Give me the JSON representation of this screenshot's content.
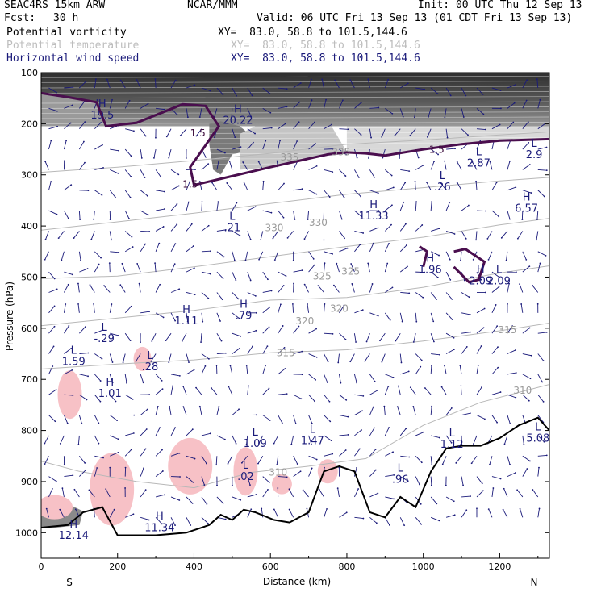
{
  "header": {
    "model": "SEAC4RS 15km ARW",
    "source": "NCAR/MMM",
    "init": "Init: 00 UTC Thu 12 Sep 13",
    "fcst_label": "Fcst:",
    "fcst_value": "30 h",
    "valid": "Valid: 06 UTC Fri 13 Sep 13 (01 CDT Fri 13 Sep 13)",
    "fields": [
      {
        "name": "Potential vorticity",
        "xy": "XY=  83.0, 58.8 to 101.5,144.6",
        "color": "#000000"
      },
      {
        "name": "Potential temperature",
        "xy": "XY=  83.0, 58.8 to 101.5,144.6",
        "color": "#bdbdbd"
      },
      {
        "name": "Horizontal wind speed",
        "xy": "XY=  83.0, 58.8 to 101.5,144.6",
        "color": "#1a1a7a"
      }
    ]
  },
  "chart_data": {
    "type": "cross-section",
    "xlabel": "Distance (km)",
    "ylabel": "Pressure (hPa)",
    "xlim": [
      0,
      1330
    ],
    "ylim": [
      1050,
      100
    ],
    "xticks": [
      0,
      200,
      400,
      600,
      800,
      1000,
      1200
    ],
    "yticks": [
      100,
      200,
      300,
      400,
      500,
      600,
      700,
      800,
      900,
      1000
    ],
    "x_end_labels": {
      "left": "S",
      "right": "N"
    },
    "isentropes": [
      {
        "label": "335",
        "pts": [
          [
            0,
            295
          ],
          [
            200,
            285
          ],
          [
            400,
            272
          ],
          [
            600,
            258
          ],
          [
            800,
            240
          ],
          [
            1000,
            232
          ],
          [
            1200,
            222
          ],
          [
            1330,
            216
          ]
        ],
        "labels_at": [
          [
            650,
            272
          ],
          [
            785,
            262
          ]
        ]
      },
      {
        "label": "330",
        "pts": [
          [
            0,
            408
          ],
          [
            200,
            392
          ],
          [
            400,
            375
          ],
          [
            600,
            356
          ],
          [
            800,
            338
          ],
          [
            1000,
            325
          ],
          [
            1200,
            312
          ],
          [
            1330,
            305
          ]
        ],
        "labels_at": [
          [
            610,
            410
          ],
          [
            725,
            400
          ]
        ]
      },
      {
        "label": "325",
        "pts": [
          [
            0,
            503
          ],
          [
            200,
            498
          ],
          [
            400,
            480
          ],
          [
            600,
            460
          ],
          [
            800,
            440
          ],
          [
            1000,
            422
          ],
          [
            1200,
            398
          ],
          [
            1330,
            385
          ]
        ],
        "labels_at": [
          [
            735,
            505
          ],
          [
            810,
            495
          ]
        ]
      },
      {
        "label": "320",
        "pts": [
          [
            0,
            595
          ],
          [
            200,
            580
          ],
          [
            400,
            565
          ],
          [
            600,
            545
          ],
          [
            800,
            540
          ],
          [
            1000,
            520
          ],
          [
            1200,
            492
          ],
          [
            1330,
            478
          ]
        ],
        "labels_at": [
          [
            690,
            592
          ],
          [
            780,
            568
          ]
        ]
      },
      {
        "label": "315",
        "pts": [
          [
            0,
            680
          ],
          [
            200,
            670
          ],
          [
            400,
            662
          ],
          [
            600,
            648
          ],
          [
            800,
            642
          ],
          [
            1000,
            625
          ],
          [
            1200,
            605
          ],
          [
            1330,
            590
          ]
        ],
        "labels_at": [
          [
            640,
            655
          ],
          [
            1220,
            610
          ]
        ]
      },
      {
        "label": "310",
        "pts": [
          [
            0,
            860
          ],
          [
            100,
            880
          ],
          [
            250,
            900
          ],
          [
            400,
            912
          ],
          [
            550,
            882
          ],
          [
            700,
            870
          ],
          [
            850,
            855
          ],
          [
            1000,
            790
          ],
          [
            1150,
            745
          ],
          [
            1330,
            710
          ]
        ],
        "labels_at": [
          [
            620,
            888
          ],
          [
            1260,
            728
          ]
        ]
      }
    ],
    "pv_1p5": [
      {
        "label": "1.5",
        "pts": [
          [
            0,
            140
          ],
          [
            70,
            148
          ],
          [
            145,
            158
          ],
          [
            170,
            205
          ],
          [
            250,
            198
          ],
          [
            370,
            162
          ],
          [
            430,
            165
          ],
          [
            465,
            205
          ],
          [
            390,
            285
          ],
          [
            400,
            320
          ],
          [
            480,
            306
          ],
          [
            600,
            285
          ],
          [
            750,
            260
          ],
          [
            800,
            256
          ],
          [
            850,
            258
          ],
          [
            900,
            262
          ],
          [
            1000,
            250
          ],
          [
            1100,
            240
          ],
          [
            1200,
            233
          ],
          [
            1330,
            230
          ]
        ],
        "labels_at": [
          [
            410,
            225
          ],
          [
            1035,
            257
          ],
          [
            390,
            325
          ]
        ]
      }
    ],
    "terrain": [
      [
        0,
        990
      ],
      [
        70,
        985
      ],
      [
        110,
        960
      ],
      [
        160,
        950
      ],
      [
        200,
        1005
      ],
      [
        300,
        1005
      ],
      [
        380,
        1000
      ],
      [
        440,
        985
      ],
      [
        470,
        965
      ],
      [
        500,
        975
      ],
      [
        530,
        955
      ],
      [
        560,
        960
      ],
      [
        610,
        975
      ],
      [
        650,
        980
      ],
      [
        700,
        960
      ],
      [
        740,
        880
      ],
      [
        780,
        870
      ],
      [
        820,
        880
      ],
      [
        860,
        960
      ],
      [
        900,
        970
      ],
      [
        940,
        930
      ],
      [
        980,
        950
      ],
      [
        1020,
        880
      ],
      [
        1060,
        835
      ],
      [
        1100,
        830
      ],
      [
        1150,
        830
      ],
      [
        1200,
        815
      ],
      [
        1250,
        790
      ],
      [
        1300,
        775
      ],
      [
        1330,
        800
      ]
    ],
    "lows_highs": [
      {
        "kind": "H",
        "value": "19.5",
        "x": 160,
        "p": 168
      },
      {
        "kind": "H",
        "value": "20.22",
        "x": 515,
        "p": 178
      },
      {
        "kind": "L",
        "value": "2.87",
        "x": 1145,
        "p": 262
      },
      {
        "kind": "L",
        "value": "2.9",
        "x": 1290,
        "p": 245
      },
      {
        "kind": "L",
        "value": ".26",
        "x": 1050,
        "p": 308
      },
      {
        "kind": "H",
        "value": "11.33",
        "x": 870,
        "p": 365
      },
      {
        "kind": "H",
        "value": "6.57",
        "x": 1270,
        "p": 350
      },
      {
        "kind": "L",
        "value": ".21",
        "x": 500,
        "p": 388
      },
      {
        "kind": "H",
        "value": "1.96",
        "x": 1018,
        "p": 470
      },
      {
        "kind": "H",
        "value": "2.09",
        "x": 1150,
        "p": 492
      },
      {
        "kind": "L",
        "value": "2.09",
        "x": 1198,
        "p": 492
      },
      {
        "kind": "H",
        "value": "1.11",
        "x": 380,
        "p": 570
      },
      {
        "kind": "H",
        "value": ".79",
        "x": 530,
        "p": 560
      },
      {
        "kind": "L",
        "value": "-.29",
        "x": 165,
        "p": 605
      },
      {
        "kind": "L",
        "value": "1.59",
        "x": 85,
        "p": 650
      },
      {
        "kind": "L",
        "value": ".28",
        "x": 285,
        "p": 660
      },
      {
        "kind": "H",
        "value": "1.01",
        "x": 180,
        "p": 712
      },
      {
        "kind": "L",
        "value": "1.09",
        "x": 560,
        "p": 810
      },
      {
        "kind": "L",
        "value": "1.47",
        "x": 710,
        "p": 805
      },
      {
        "kind": "L",
        "value": "1.12",
        "x": 1075,
        "p": 812
      },
      {
        "kind": "L",
        "value": ".02",
        "x": 535,
        "p": 875
      },
      {
        "kind": "L",
        "value": ".96",
        "x": 940,
        "p": 880
      },
      {
        "kind": "L",
        "value": "5.08",
        "x": 1300,
        "p": 800
      },
      {
        "kind": "H",
        "value": "11.34",
        "x": 310,
        "p": 975
      },
      {
        "kind": "H",
        "value": "12.14",
        "x": 85,
        "p": 990
      }
    ],
    "pv_shading_bands": [
      {
        "p_top": 100,
        "p_bottom": 205,
        "x_from": 0,
        "x_to": 1330,
        "color": "#606060"
      }
    ],
    "pv_negative_patches": [
      {
        "x": 75,
        "p": 730,
        "w": 30,
        "h": 60
      },
      {
        "x": 185,
        "p": 915,
        "w": 55,
        "h": 90
      },
      {
        "x": 265,
        "p": 660,
        "w": 22,
        "h": 30
      },
      {
        "x": 390,
        "p": 870,
        "w": 55,
        "h": 70
      },
      {
        "x": 535,
        "p": 880,
        "w": 30,
        "h": 60
      },
      {
        "x": 630,
        "p": 905,
        "w": 25,
        "h": 25
      },
      {
        "x": 750,
        "p": 880,
        "w": 25,
        "h": 30
      },
      {
        "x": 35,
        "p": 950,
        "w": 45,
        "h": 30
      }
    ],
    "colors": {
      "pv": "#4a0e4e",
      "theta": "#b8b8b8",
      "wind": "#1a1a7a",
      "terrain": "#000000",
      "shade_light": "#d9d9d9",
      "shade_dark": "#3a3a3a",
      "negative": "#f7c1c6"
    }
  }
}
